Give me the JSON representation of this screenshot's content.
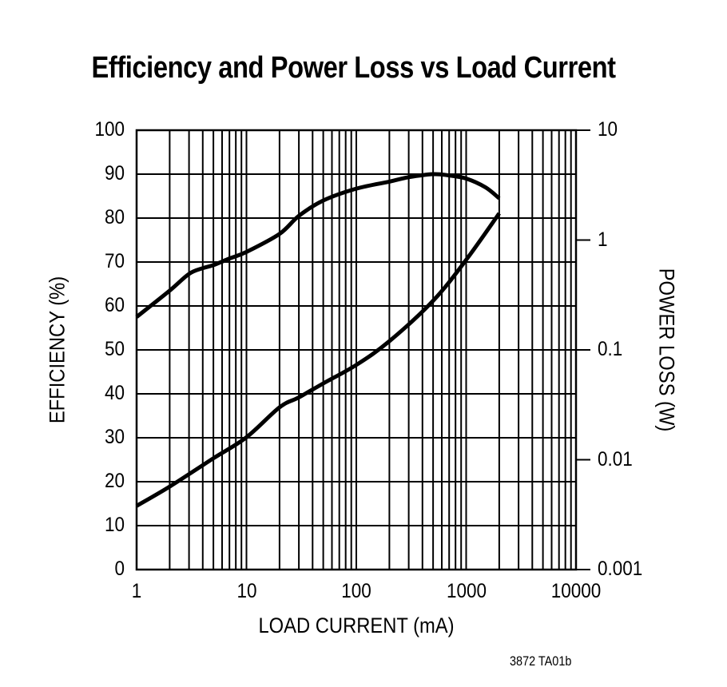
{
  "chart_data": {
    "type": "line",
    "title": "Efficiency and Power Loss vs Load Current",
    "xlabel": "LOAD CURRENT (mA)",
    "ylabel": "EFFICIENCY (%)",
    "y2label": "POWER LOSS (W)",
    "xscale": "log",
    "xlim": [
      1,
      10000
    ],
    "ylim": [
      0,
      100
    ],
    "y2scale": "log",
    "y2lim": [
      0.001,
      10
    ],
    "x_ticks": [
      "1",
      "10",
      "100",
      "1000",
      "10000"
    ],
    "y_ticks": [
      "0",
      "10",
      "20",
      "30",
      "40",
      "50",
      "60",
      "70",
      "80",
      "90",
      "100"
    ],
    "y2_ticks": [
      "0.001",
      "0.01",
      "0.1",
      "1",
      "10"
    ],
    "grid": true,
    "legend": null,
    "series": [
      {
        "name": "Efficiency",
        "axis": "left",
        "x": [
          1,
          2,
          3,
          4,
          5,
          7,
          10,
          20,
          30,
          50,
          100,
          200,
          300,
          500,
          700,
          1000,
          1500,
          2000
        ],
        "values": [
          57.5,
          63.5,
          67.3,
          68.6,
          69.3,
          70.8,
          72.3,
          76.4,
          80.5,
          84,
          86.7,
          88.3,
          89.3,
          90,
          89.7,
          89,
          87,
          84.5
        ]
      },
      {
        "name": "Power Loss",
        "axis": "right",
        "x": [
          1,
          2,
          5,
          10,
          20,
          30,
          50,
          100,
          200,
          500,
          1000,
          2000
        ],
        "values": [
          0.0038,
          0.0057,
          0.0103,
          0.016,
          0.03,
          0.037,
          0.0495,
          0.073,
          0.12,
          0.28,
          0.66,
          1.75
        ]
      }
    ]
  },
  "footer": {
    "code": "3872 TA01b"
  }
}
